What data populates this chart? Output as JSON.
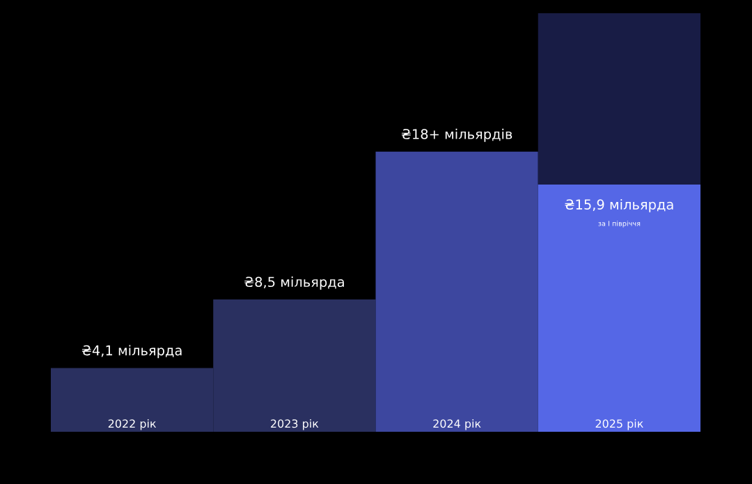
{
  "chart_data": {
    "type": "bar",
    "stacked": true,
    "tick_labels": "x",
    "categories": [
      "2022 рік",
      "2023 рік",
      "2024 рік",
      "2025 рік"
    ],
    "series": [
      {
        "colors": [
          "#2a3060",
          "#2a3060",
          "#3d479f",
          "#5567e6"
        ],
        "values": [
          4.1,
          8.5,
          18,
          15.9
        ],
        "value_labels": [
          "₴4,1 мільярда",
          "₴8,5 мільярда",
          "₴18+ мільярдів",
          "₴15,9 мільярда"
        ]
      },
      {
        "color": "#181c45",
        "values": [
          null,
          null,
          null,
          11
        ]
      }
    ],
    "annotations": [
      "за I півріччя"
    ]
  }
}
